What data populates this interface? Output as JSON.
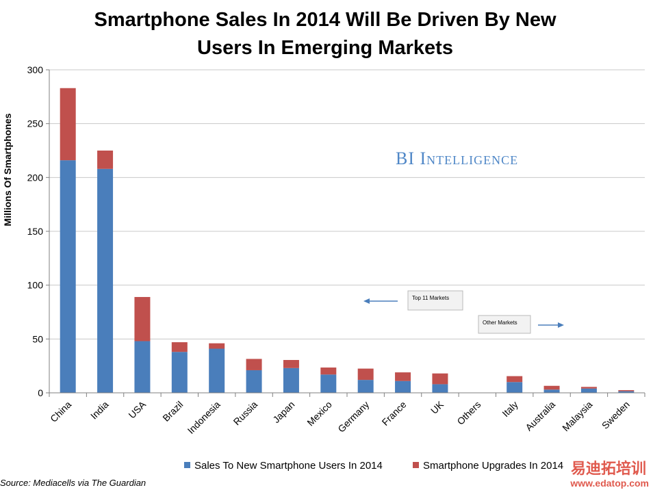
{
  "chart_data": {
    "type": "bar",
    "stacked": true,
    "title_lines": [
      "Smartphone Sales In 2014 Will Be Driven By New",
      "Users In Emerging Markets"
    ],
    "ylabel": "Millions Of  Smartphones",
    "xlabel": "",
    "ylim": [
      0,
      300
    ],
    "yticks": [
      0,
      50,
      100,
      150,
      200,
      250,
      300
    ],
    "grid": true,
    "categories": [
      "China",
      "India",
      "USA",
      "Brazil",
      "Indonesia",
      "Russia",
      "Japan",
      "Mexico",
      "Germany",
      "France",
      "UK",
      "Others",
      "Italy",
      "Australia",
      "Malaysia",
      "Sweden"
    ],
    "series": [
      {
        "name": "Sales To New Smartphone Users In 2014",
        "color": "#4a7ebb",
        "values": [
          216,
          208,
          48,
          38,
          41,
          21,
          23,
          17,
          12,
          11,
          8,
          0,
          10,
          3,
          4,
          1.5
        ]
      },
      {
        "name": "Smartphone Upgrades In 2014",
        "color": "#c0504d",
        "values": [
          67,
          17,
          41,
          9,
          5,
          10.5,
          7.5,
          6.5,
          10.5,
          8,
          10,
          0,
          5.5,
          3.5,
          1.5,
          1
        ]
      }
    ],
    "legend_position": "bottom",
    "annotations": [
      "Top 11 Markets",
      "Other Markets"
    ]
  },
  "watermark": {
    "text": "BI Intelligence"
  },
  "source": "Source: Mediacells via The Guardian",
  "corner_mark": {
    "text": "易迪拓培训",
    "url": "www.edatop.com"
  },
  "colors": {
    "grid": "#c8c8c8",
    "axis": "#7f7f7f"
  }
}
